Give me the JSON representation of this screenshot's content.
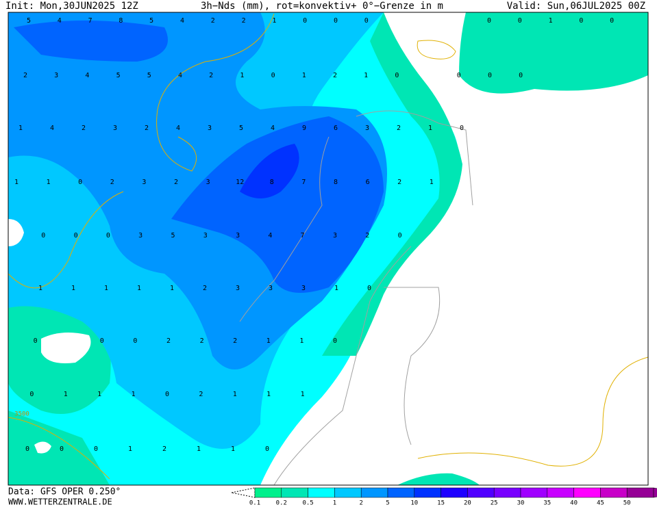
{
  "header": {
    "init": "Init: Mon,30JUN2025 12Z",
    "title": "3h−Nds (mm), rot=konvektiv+ 0°−Grenze in m",
    "valid": "Valid: Sun,06JUL2025 00Z"
  },
  "map": {
    "contour_label": "3500",
    "grid_values": [
      [
        5,
        4,
        7,
        8,
        5,
        4,
        2,
        2,
        1,
        0,
        0,
        0,
        null,
        null,
        null,
        0,
        0,
        1,
        0,
        0
      ],
      [
        2,
        3,
        4,
        5,
        5,
        4,
        2,
        1,
        0,
        1,
        2,
        1,
        0,
        null,
        0,
        0,
        0
      ],
      [
        1,
        4,
        2,
        3,
        2,
        4,
        3,
        5,
        4,
        9,
        6,
        3,
        2,
        1,
        0
      ],
      [
        1,
        1,
        0,
        2,
        3,
        2,
        3,
        12,
        8,
        7,
        8,
        6,
        2,
        1
      ],
      [
        null,
        0,
        0,
        0,
        3,
        5,
        3,
        3,
        4,
        7,
        3,
        2,
        0
      ],
      [
        null,
        1,
        1,
        1,
        1,
        1,
        2,
        3,
        3,
        3,
        1,
        0
      ],
      [
        null,
        0,
        null,
        0,
        0,
        2,
        2,
        2,
        1,
        1,
        0
      ],
      [
        null,
        0,
        1,
        1,
        1,
        0,
        2,
        1,
        1,
        1
      ],
      [
        null,
        0,
        0,
        0,
        1,
        2,
        1,
        1,
        0
      ]
    ]
  },
  "legend": {
    "labels": [
      "0.1",
      "0.2",
      "0.5",
      "1",
      "2",
      "5",
      "10",
      "15",
      "20",
      "25",
      "30",
      "35",
      "40",
      "45",
      "50"
    ],
    "colors": [
      "#00f08c",
      "#00e6b4",
      "#00ffff",
      "#00c8ff",
      "#0096ff",
      "#0064ff",
      "#0032ff",
      "#1e00ff",
      "#5000ff",
      "#7800ff",
      "#a000ff",
      "#c800ff",
      "#ff00ff",
      "#c800c8",
      "#960096"
    ]
  },
  "footer": {
    "source": "Data: GFS OPER 0.250°",
    "site": "WWW.WETTERZENTRALE.DE"
  }
}
